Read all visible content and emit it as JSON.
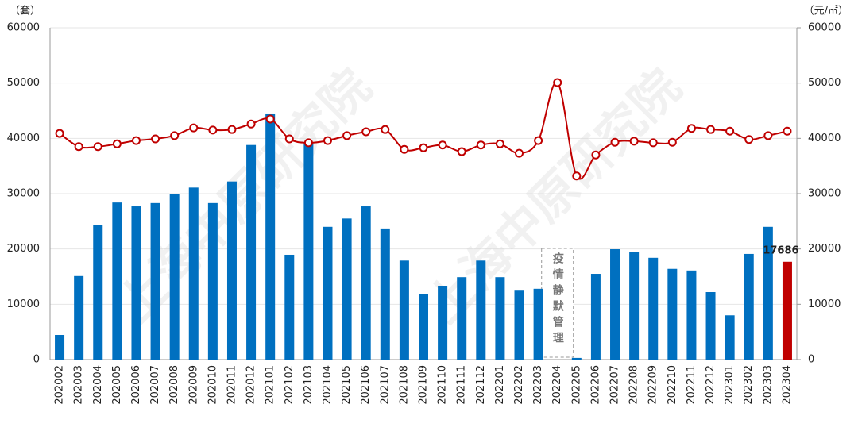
{
  "chart_data": {
    "type": "bar-line",
    "y_unit": "（套）",
    "y2_unit": "（元/㎡）",
    "watermark": "上海中原研究院",
    "categories": [
      "202002",
      "202003",
      "202004",
      "202005",
      "202006",
      "202007",
      "202008",
      "202009",
      "202010",
      "202011",
      "202012",
      "202101",
      "202102",
      "202103",
      "202104",
      "202105",
      "202106",
      "202107",
      "202108",
      "202109",
      "202110",
      "202111",
      "202112",
      "202201",
      "202202",
      "202203",
      "202204",
      "202205",
      "202206",
      "202207",
      "202208",
      "202209",
      "202210",
      "202211",
      "202212",
      "202301",
      "202302",
      "202303",
      "202304"
    ],
    "series": [
      {
        "type": "bar",
        "color": "#0070c0",
        "colors": [
          "#0070c0",
          "#0070c0",
          "#0070c0",
          "#0070c0",
          "#0070c0",
          "#0070c0",
          "#0070c0",
          "#0070c0",
          "#0070c0",
          "#0070c0",
          "#0070c0",
          "#0070c0",
          "#0070c0",
          "#0070c0",
          "#0070c0",
          "#0070c0",
          "#0070c0",
          "#0070c0",
          "#0070c0",
          "#0070c0",
          "#0070c0",
          "#0070c0",
          "#0070c0",
          "#0070c0",
          "#0070c0",
          "#0070c0",
          "#0070c0",
          "#0070c0",
          "#0070c0",
          "#0070c0",
          "#0070c0",
          "#0070c0",
          "#0070c0",
          "#0070c0",
          "#0070c0",
          "#0070c0",
          "#0070c0",
          "#0070c0",
          "#c00000"
        ],
        "values": [
          4450,
          15100,
          24400,
          28400,
          27700,
          28300,
          29900,
          31100,
          28300,
          32200,
          38800,
          44500,
          18950,
          39200,
          24000,
          25500,
          27700,
          23700,
          17900,
          11900,
          13350,
          14900,
          17900,
          14900,
          12600,
          12800,
          0,
          300,
          15500,
          19950,
          19400,
          18400,
          16400,
          16100,
          12200,
          8000,
          19100,
          24000,
          17686
        ]
      },
      {
        "type": "line",
        "axis": "y2",
        "color": "#c00000",
        "values": [
          40900,
          38500,
          38500,
          39000,
          39600,
          39900,
          40500,
          41900,
          41500,
          41600,
          42600,
          43500,
          39900,
          39200,
          39600,
          40500,
          41200,
          41600,
          38000,
          38300,
          38800,
          37600,
          38800,
          39000,
          37300,
          39600,
          50100,
          33200,
          37000,
          39300,
          39500,
          39200,
          39300,
          41800,
          41600,
          41300,
          39800,
          40500,
          41300
        ]
      }
    ],
    "annotation": {
      "text": "疫情静默管理",
      "category": "202204"
    },
    "ylim": [
      0,
      60000
    ],
    "yticks": [
      0,
      10000,
      20000,
      30000,
      40000,
      50000,
      60000
    ],
    "y2lim": [
      0,
      60000
    ],
    "y2ticks": [
      0,
      10000,
      20000,
      30000,
      40000,
      50000,
      60000
    ],
    "grid": true
  }
}
